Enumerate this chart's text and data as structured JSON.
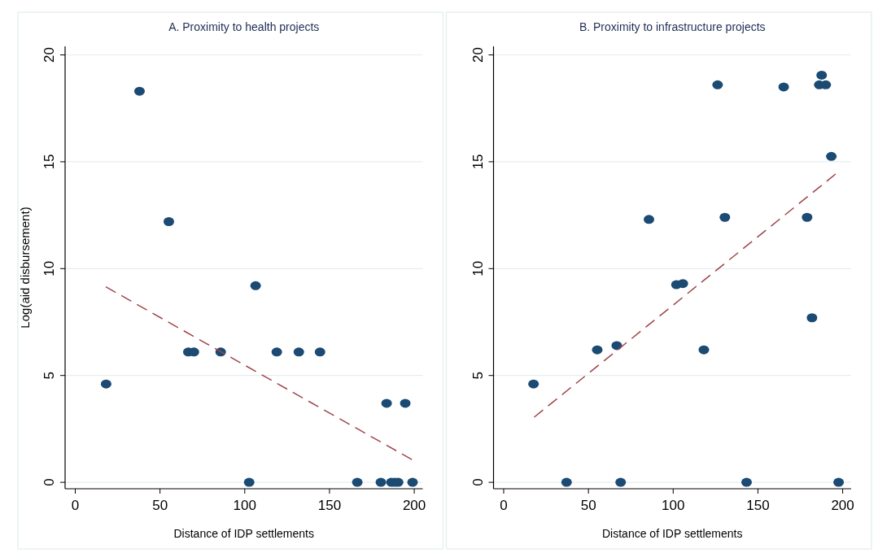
{
  "chart_data": [
    {
      "type": "scatter",
      "title": "A. Proximity to health projects",
      "xlabel": "Distance of IDP settlements",
      "ylabel": "Log(aid disbursement)",
      "xlim": [
        -6,
        205
      ],
      "ylim": [
        -0.3,
        20.4
      ],
      "xticks": [
        0,
        50,
        100,
        150,
        200
      ],
      "yticks": [
        0,
        5,
        10,
        15,
        20
      ],
      "grid": "y",
      "marker": "circle",
      "series": [
        {
          "color": "#1b4a72",
          "x": [
            18.2,
            37.9,
            55.2,
            66.7,
            70.0,
            85.8,
            102.6,
            106.4,
            118.9,
            131.9,
            144.4,
            166.4,
            180.3,
            183.7,
            186.5,
            188.5,
            190.5,
            194.7,
            199.0
          ],
          "values": [
            4.6,
            18.3,
            12.2,
            6.1,
            6.1,
            6.1,
            0,
            9.2,
            6.1,
            6.1,
            6.1,
            0,
            0,
            3.7,
            0,
            0,
            0,
            3.7,
            0
          ]
        },
        {
          "type": "line",
          "color": "#a0434a",
          "line_style": "dashed",
          "marker": "none",
          "x": [
            18,
            199
          ],
          "values": [
            9.15,
            1.05
          ]
        }
      ]
    },
    {
      "type": "scatter",
      "title": "B. Proximity to infrastructure projects",
      "xlabel": "Distance of IDP settlements",
      "xlim": [
        -6,
        205
      ],
      "ylim": [
        -0.3,
        20.4
      ],
      "xticks": [
        0,
        50,
        100,
        150,
        200
      ],
      "yticks": [
        0,
        5,
        10,
        15,
        20
      ],
      "grid": "y",
      "marker": "circle",
      "series": [
        {
          "color": "#1b4a72",
          "x": [
            17.6,
            37.1,
            55.2,
            66.7,
            69.0,
            85.7,
            101.9,
            105.7,
            118.1,
            126.2,
            130.5,
            143.3,
            165.2,
            179.0,
            181.9,
            186.2,
            187.6,
            190.0,
            193.3,
            197.6
          ],
          "values": [
            4.6,
            0,
            6.2,
            6.4,
            0,
            12.3,
            9.25,
            9.3,
            6.2,
            18.6,
            12.4,
            0,
            18.5,
            12.4,
            7.7,
            18.6,
            19.05,
            18.6,
            15.25,
            0
          ]
        },
        {
          "type": "line",
          "color": "#a0434a",
          "line_style": "dashed",
          "marker": "none",
          "x": [
            18,
            197
          ],
          "values": [
            3.05,
            14.5
          ]
        }
      ]
    }
  ]
}
